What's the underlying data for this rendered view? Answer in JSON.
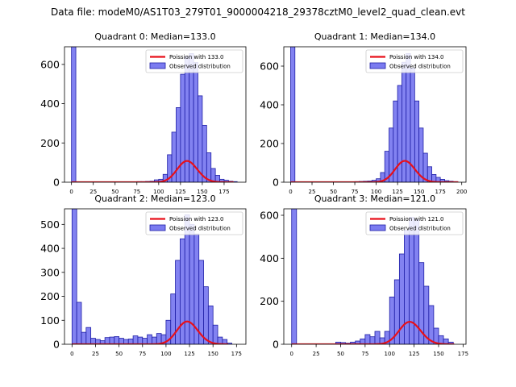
{
  "suptitle": "Data file: modeM0/AS1T03_279T01_9000004218_29378cztM0_level2_quad_clean.evt",
  "colors": {
    "bar_fill": "#7b7bf0",
    "bar_edge": "#1f1fa6",
    "poisson_line": "#e8101a"
  },
  "chart_data": [
    {
      "type": "bar+line",
      "title": "Quadrant 0: Median=133.0",
      "xlim": [
        -8,
        200
      ],
      "ylim": [
        0,
        690
      ],
      "xticks": [
        0,
        25,
        50,
        75,
        100,
        125,
        150,
        175
      ],
      "yticks": [
        0,
        200,
        400,
        600
      ],
      "legend": {
        "placement": "top-right",
        "line_label": "Poission with 133.0",
        "bar_label": "Observed distribution"
      },
      "bin_width": 5,
      "hist": [
        {
          "x": 0,
          "y": 690
        },
        {
          "x": 75,
          "y": 3
        },
        {
          "x": 80,
          "y": 3
        },
        {
          "x": 85,
          "y": 4
        },
        {
          "x": 90,
          "y": 5
        },
        {
          "x": 95,
          "y": 12
        },
        {
          "x": 100,
          "y": 15
        },
        {
          "x": 105,
          "y": 40
        },
        {
          "x": 110,
          "y": 140
        },
        {
          "x": 115,
          "y": 255
        },
        {
          "x": 120,
          "y": 380
        },
        {
          "x": 125,
          "y": 550
        },
        {
          "x": 130,
          "y": 640
        },
        {
          "x": 135,
          "y": 655
        },
        {
          "x": 140,
          "y": 610
        },
        {
          "x": 145,
          "y": 440
        },
        {
          "x": 150,
          "y": 290
        },
        {
          "x": 155,
          "y": 150
        },
        {
          "x": 160,
          "y": 70
        },
        {
          "x": 165,
          "y": 35
        },
        {
          "x": 170,
          "y": 15
        },
        {
          "x": 175,
          "y": 10
        },
        {
          "x": 180,
          "y": 5
        },
        {
          "x": 185,
          "y": 3
        }
      ],
      "poisson": {
        "lambda": 133.0,
        "scale": 3130,
        "x_range": [
          0,
          186
        ]
      }
    },
    {
      "type": "bar+line",
      "title": "Quadrant 1: Median=134.0",
      "xlim": [
        -8,
        205
      ],
      "ylim": [
        0,
        700
      ],
      "xticks": [
        0,
        25,
        50,
        75,
        100,
        125,
        150,
        175,
        200
      ],
      "yticks": [
        0,
        200,
        400,
        600
      ],
      "legend": {
        "placement": "top-right",
        "line_label": "Poission with 134.0",
        "bar_label": "Observed distribution"
      },
      "bin_width": 5,
      "hist": [
        {
          "x": 0,
          "y": 700
        },
        {
          "x": 75,
          "y": 3
        },
        {
          "x": 80,
          "y": 4
        },
        {
          "x": 85,
          "y": 5
        },
        {
          "x": 90,
          "y": 6
        },
        {
          "x": 95,
          "y": 10
        },
        {
          "x": 100,
          "y": 18
        },
        {
          "x": 105,
          "y": 50
        },
        {
          "x": 110,
          "y": 160
        },
        {
          "x": 115,
          "y": 280
        },
        {
          "x": 120,
          "y": 420
        },
        {
          "x": 125,
          "y": 500
        },
        {
          "x": 130,
          "y": 620
        },
        {
          "x": 135,
          "y": 665
        },
        {
          "x": 140,
          "y": 590
        },
        {
          "x": 145,
          "y": 420
        },
        {
          "x": 150,
          "y": 280
        },
        {
          "x": 155,
          "y": 150
        },
        {
          "x": 160,
          "y": 80
        },
        {
          "x": 165,
          "y": 40
        },
        {
          "x": 170,
          "y": 25
        },
        {
          "x": 175,
          "y": 15
        },
        {
          "x": 180,
          "y": 8
        },
        {
          "x": 185,
          "y": 5
        },
        {
          "x": 190,
          "y": 3
        }
      ],
      "poisson": {
        "lambda": 134.0,
        "scale": 3200,
        "x_range": [
          0,
          196
        ]
      }
    },
    {
      "type": "bar+line",
      "title": "Quadrant 2: Median=123.0",
      "xlim": [
        -8,
        185
      ],
      "ylim": [
        0,
        565
      ],
      "xticks": [
        0,
        25,
        50,
        75,
        100,
        125,
        150,
        175
      ],
      "yticks": [
        0,
        100,
        200,
        300,
        400,
        500
      ],
      "legend": {
        "placement": "top-right",
        "line_label": "Poission with 123.0",
        "bar_label": "Observed distribution"
      },
      "bin_width": 5,
      "hist": [
        {
          "x": 0,
          "y": 565
        },
        {
          "x": 5,
          "y": 175
        },
        {
          "x": 10,
          "y": 50
        },
        {
          "x": 15,
          "y": 70
        },
        {
          "x": 20,
          "y": 25
        },
        {
          "x": 25,
          "y": 20
        },
        {
          "x": 30,
          "y": 15
        },
        {
          "x": 35,
          "y": 28
        },
        {
          "x": 40,
          "y": 30
        },
        {
          "x": 45,
          "y": 32
        },
        {
          "x": 50,
          "y": 25
        },
        {
          "x": 55,
          "y": 20
        },
        {
          "x": 60,
          "y": 22
        },
        {
          "x": 65,
          "y": 35
        },
        {
          "x": 70,
          "y": 30
        },
        {
          "x": 75,
          "y": 25
        },
        {
          "x": 80,
          "y": 40
        },
        {
          "x": 85,
          "y": 30
        },
        {
          "x": 90,
          "y": 45
        },
        {
          "x": 95,
          "y": 40
        },
        {
          "x": 100,
          "y": 100
        },
        {
          "x": 105,
          "y": 210
        },
        {
          "x": 110,
          "y": 350
        },
        {
          "x": 115,
          "y": 440
        },
        {
          "x": 120,
          "y": 540
        },
        {
          "x": 125,
          "y": 500
        },
        {
          "x": 130,
          "y": 460
        },
        {
          "x": 135,
          "y": 350
        },
        {
          "x": 140,
          "y": 240
        },
        {
          "x": 145,
          "y": 160
        },
        {
          "x": 150,
          "y": 80
        },
        {
          "x": 155,
          "y": 30
        },
        {
          "x": 160,
          "y": 20
        },
        {
          "x": 165,
          "y": 5
        }
      ],
      "poisson": {
        "lambda": 123.0,
        "scale": 2640,
        "x_range": [
          0,
          166
        ]
      }
    },
    {
      "type": "bar+line",
      "title": "Quadrant 3: Median=121.0",
      "xlim": [
        -8,
        178
      ],
      "ylim": [
        0,
        630
      ],
      "xticks": [
        0,
        25,
        50,
        75,
        100,
        125,
        150,
        175
      ],
      "yticks": [
        0,
        200,
        400,
        600
      ],
      "legend": {
        "placement": "top-right",
        "line_label": "Poission with 121.0",
        "bar_label": "Observed distribution"
      },
      "bin_width": 5,
      "hist": [
        {
          "x": 0,
          "y": 630
        },
        {
          "x": 45,
          "y": 10
        },
        {
          "x": 50,
          "y": 8
        },
        {
          "x": 55,
          "y": 5
        },
        {
          "x": 60,
          "y": 10
        },
        {
          "x": 65,
          "y": 15
        },
        {
          "x": 70,
          "y": 25
        },
        {
          "x": 75,
          "y": 45
        },
        {
          "x": 80,
          "y": 35
        },
        {
          "x": 85,
          "y": 60
        },
        {
          "x": 90,
          "y": 30
        },
        {
          "x": 95,
          "y": 60
        },
        {
          "x": 100,
          "y": 220
        },
        {
          "x": 105,
          "y": 300
        },
        {
          "x": 110,
          "y": 420
        },
        {
          "x": 115,
          "y": 530
        },
        {
          "x": 120,
          "y": 590
        },
        {
          "x": 125,
          "y": 580
        },
        {
          "x": 130,
          "y": 380
        },
        {
          "x": 135,
          "y": 270
        },
        {
          "x": 140,
          "y": 180
        },
        {
          "x": 145,
          "y": 75
        },
        {
          "x": 150,
          "y": 40
        },
        {
          "x": 155,
          "y": 25
        },
        {
          "x": 160,
          "y": 10
        }
      ],
      "poisson": {
        "lambda": 121.0,
        "scale": 2880,
        "x_range": [
          0,
          166
        ]
      }
    }
  ]
}
